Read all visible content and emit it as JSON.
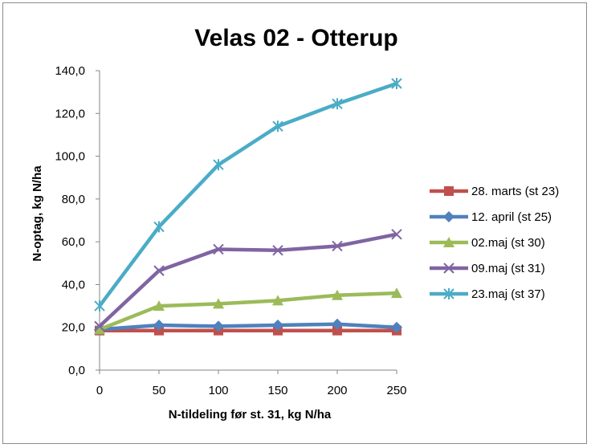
{
  "chart_data": {
    "type": "line",
    "title": "Velas 02 - Otterup",
    "xlabel": "N-tildeling før st. 31, kg N/ha",
    "ylabel": "N-optag, kg N/ha",
    "x": [
      0,
      50,
      100,
      150,
      200,
      250
    ],
    "ylim": [
      0,
      140
    ],
    "xlim": [
      0,
      250
    ],
    "y_ticks": [
      "0,0",
      "20,0",
      "40,0",
      "60,0",
      "80,0",
      "100,0",
      "120,0",
      "140,0"
    ],
    "y_tick_values": [
      0,
      20,
      40,
      60,
      80,
      100,
      120,
      140
    ],
    "x_ticks": [
      "0",
      "50",
      "100",
      "150",
      "200",
      "250"
    ],
    "grid": "horizontal-none",
    "legend_position": "right",
    "series": [
      {
        "name": "28. marts (st 23)",
        "values": [
          18.5,
          18.5,
          18.5,
          18.5,
          18.5,
          18.5
        ],
        "color": "#c0504d",
        "marker": "square"
      },
      {
        "name": "12. april (st 25)",
        "values": [
          19.0,
          21.0,
          20.5,
          21.0,
          21.5,
          20.0
        ],
        "color": "#4f81bd",
        "marker": "diamond"
      },
      {
        "name": "02.maj (st 30)",
        "values": [
          19.0,
          30.0,
          31.0,
          32.5,
          35.0,
          36.0
        ],
        "color": "#9bbb59",
        "marker": "triangle"
      },
      {
        "name": "09.maj (st 31)",
        "values": [
          20.5,
          46.5,
          56.5,
          56.0,
          58.0,
          63.5
        ],
        "color": "#8064a2",
        "marker": "x"
      },
      {
        "name": "23.maj (st 37)",
        "values": [
          30.0,
          67.0,
          96.0,
          114.0,
          124.5,
          134.0
        ],
        "color": "#4bacc6",
        "marker": "star"
      }
    ]
  }
}
